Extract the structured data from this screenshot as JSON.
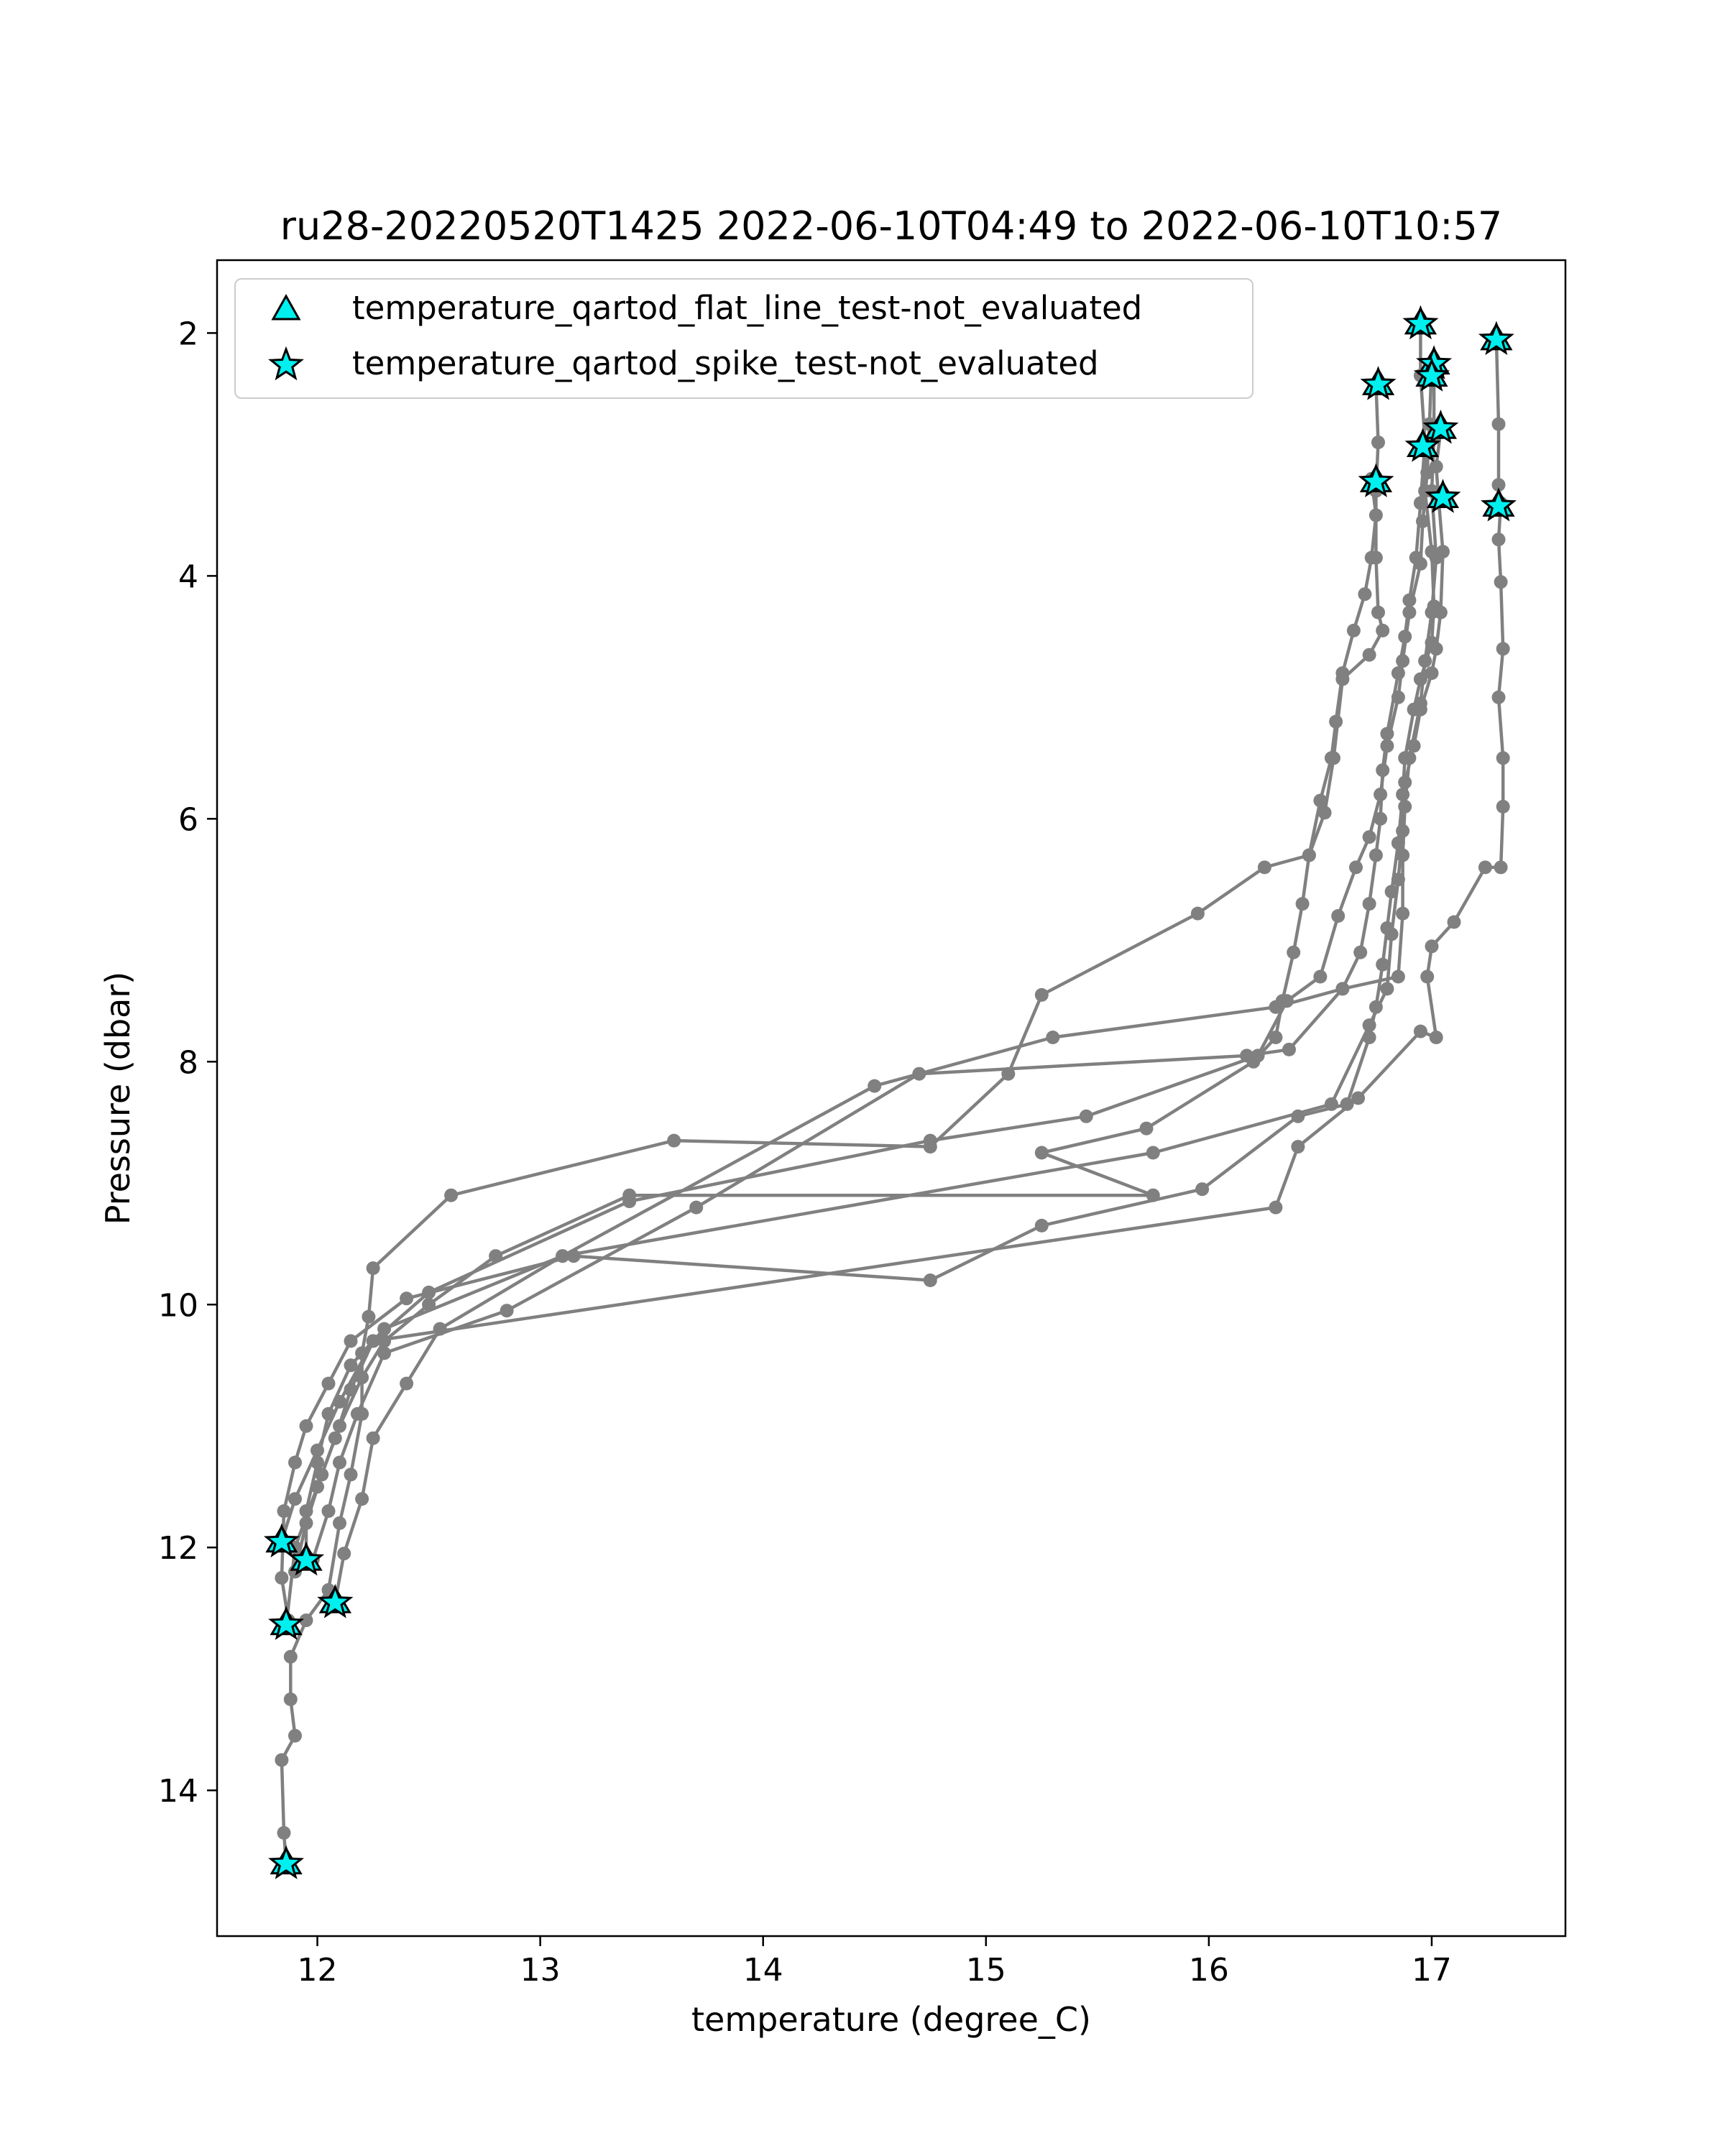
{
  "chart_data": {
    "type": "scatter",
    "title": "ru28-20220520T1425 2022-06-10T04:49 to 2022-06-10T10:57",
    "xlabel": "temperature (degree_C)",
    "ylabel": "Pressure (dbar)",
    "xlim": [
      11.55,
      17.6
    ],
    "ylim": [
      15.2,
      1.4
    ],
    "y_inverted": true,
    "xticks": [
      12,
      13,
      14,
      15,
      16,
      17
    ],
    "yticks": [
      2,
      4,
      6,
      8,
      10,
      12,
      14
    ],
    "grid": false,
    "line_color": "#808080",
    "marker_color": "#00f0f0",
    "legend_position": "upper left",
    "legend": [
      {
        "label": "temperature_qartod_flat_line_test-not_evaluated",
        "marker": "triangle"
      },
      {
        "label": "temperature_qartod_spike_test-not_evaluated",
        "marker": "star"
      }
    ],
    "profiles": [
      [
        [
          16.75,
          2.42
        ],
        [
          16.76,
          2.9
        ],
        [
          16.75,
          3.3
        ],
        [
          16.75,
          3.85
        ],
        [
          16.76,
          4.3
        ],
        [
          16.78,
          4.45
        ],
        [
          16.72,
          4.65
        ],
        [
          16.6,
          4.85
        ],
        [
          16.56,
          5.5
        ],
        [
          16.52,
          5.95
        ],
        [
          16.45,
          6.3
        ],
        [
          16.25,
          6.4
        ],
        [
          15.95,
          6.78
        ],
        [
          15.25,
          7.45
        ],
        [
          15.1,
          8.1
        ],
        [
          14.75,
          8.7
        ],
        [
          13.6,
          8.65
        ],
        [
          12.6,
          9.1
        ],
        [
          12.25,
          9.7
        ],
        [
          12.23,
          10.1
        ],
        [
          12.2,
          10.4
        ],
        [
          12.2,
          10.9
        ],
        [
          12.15,
          11.4
        ],
        [
          12.1,
          11.8
        ],
        [
          12.05,
          12.35
        ],
        [
          11.95,
          12.6
        ],
        [
          11.88,
          12.9
        ],
        [
          11.88,
          13.25
        ],
        [
          11.9,
          13.55
        ],
        [
          11.84,
          13.75
        ],
        [
          11.85,
          14.35
        ],
        [
          11.86,
          14.6
        ]
      ],
      [
        [
          16.95,
          1.92
        ],
        [
          16.95,
          2.35
        ],
        [
          16.97,
          2.9
        ],
        [
          16.95,
          3.4
        ],
        [
          16.93,
          3.85
        ],
        [
          16.9,
          4.2
        ],
        [
          16.88,
          4.5
        ],
        [
          16.85,
          4.8
        ],
        [
          16.8,
          5.3
        ],
        [
          16.78,
          5.6
        ],
        [
          16.77,
          6.0
        ],
        [
          16.75,
          6.3
        ],
        [
          16.72,
          6.7
        ],
        [
          16.68,
          7.1
        ],
        [
          16.6,
          7.4
        ],
        [
          16.3,
          7.55
        ],
        [
          15.3,
          7.8
        ],
        [
          14.5,
          8.2
        ],
        [
          13.1,
          9.6
        ],
        [
          12.3,
          10.2
        ],
        [
          12.15,
          10.5
        ],
        [
          12.05,
          10.9
        ],
        [
          12.0,
          11.3
        ],
        [
          11.95,
          11.7
        ],
        [
          11.95,
          12.1
        ]
      ],
      [
        [
          17.0,
          2.25
        ],
        [
          16.99,
          2.75
        ],
        [
          16.98,
          3.15
        ],
        [
          16.96,
          3.55
        ],
        [
          16.95,
          3.9
        ],
        [
          16.9,
          4.3
        ],
        [
          16.87,
          4.7
        ],
        [
          16.85,
          5.0
        ],
        [
          16.8,
          5.4
        ],
        [
          16.77,
          5.8
        ],
        [
          16.72,
          6.15
        ],
        [
          16.66,
          6.4
        ],
        [
          16.58,
          6.8
        ],
        [
          16.5,
          7.3
        ],
        [
          16.35,
          7.5
        ],
        [
          16.22,
          7.95
        ],
        [
          15.45,
          8.45
        ],
        [
          14.75,
          8.65
        ],
        [
          13.4,
          9.15
        ],
        [
          12.5,
          9.9
        ],
        [
          12.25,
          10.3
        ],
        [
          12.1,
          10.8
        ],
        [
          12.0,
          11.2
        ],
        [
          11.9,
          11.6
        ],
        [
          11.84,
          11.95
        ]
      ],
      [
        [
          17.01,
          2.35
        ],
        [
          17.01,
          2.85
        ],
        [
          17.0,
          3.3
        ],
        [
          17.02,
          3.85
        ],
        [
          17.0,
          4.3
        ],
        [
          16.97,
          4.7
        ],
        [
          16.95,
          5.05
        ],
        [
          16.9,
          5.5
        ],
        [
          16.88,
          5.9
        ],
        [
          16.87,
          6.3
        ],
        [
          16.87,
          6.78
        ],
        [
          16.85,
          7.3
        ],
        [
          16.6,
          7.4
        ],
        [
          16.36,
          7.9
        ],
        [
          16.17,
          7.95
        ],
        [
          14.7,
          8.1
        ],
        [
          13.7,
          9.2
        ],
        [
          12.85,
          10.05
        ],
        [
          12.3,
          10.4
        ],
        [
          12.18,
          10.9
        ],
        [
          12.1,
          11.3
        ],
        [
          12.05,
          11.7
        ],
        [
          11.98,
          12.1
        ]
      ],
      [
        [
          17.04,
          2.8
        ],
        [
          17.02,
          3.1
        ],
        [
          17.03,
          3.35
        ],
        [
          17.05,
          3.8
        ],
        [
          17.04,
          4.3
        ],
        [
          17.02,
          4.6
        ],
        [
          17.0,
          4.8
        ],
        [
          16.95,
          5.1
        ],
        [
          16.92,
          5.4
        ],
        [
          16.88,
          5.7
        ],
        [
          16.87,
          6.1
        ],
        [
          16.85,
          6.5
        ],
        [
          16.82,
          6.95
        ],
        [
          16.8,
          7.4
        ],
        [
          16.72,
          7.7
        ],
        [
          16.55,
          8.35
        ],
        [
          15.75,
          8.75
        ],
        [
          13.1,
          9.6
        ],
        [
          12.55,
          10.2
        ],
        [
          12.4,
          10.65
        ],
        [
          12.25,
          11.1
        ],
        [
          12.2,
          11.6
        ],
        [
          12.12,
          12.05
        ],
        [
          12.08,
          12.45
        ]
      ],
      [
        [
          17.29,
          2.05
        ],
        [
          17.3,
          2.75
        ],
        [
          17.3,
          3.25
        ],
        [
          17.31,
          3.4
        ],
        [
          17.3,
          3.7
        ],
        [
          17.31,
          4.05
        ],
        [
          17.32,
          4.6
        ],
        [
          17.3,
          5.0
        ],
        [
          17.32,
          5.5
        ],
        [
          17.32,
          5.9
        ],
        [
          17.31,
          6.4
        ],
        [
          17.24,
          6.4
        ],
        [
          17.1,
          6.85
        ],
        [
          17.0,
          7.05
        ],
        [
          16.98,
          7.3
        ],
        [
          17.02,
          7.8
        ],
        [
          16.95,
          7.75
        ],
        [
          16.67,
          8.3
        ],
        [
          16.4,
          8.7
        ],
        [
          16.3,
          9.2
        ],
        [
          12.25,
          10.3
        ],
        [
          12.15,
          10.7
        ],
        [
          12.08,
          11.1
        ],
        [
          12.0,
          11.5
        ],
        [
          11.9,
          12.0
        ],
        [
          11.86,
          12.65
        ]
      ],
      [
        [
          16.97,
          2.95
        ],
        [
          16.97,
          3.3
        ],
        [
          17.0,
          3.8
        ],
        [
          17.01,
          4.25
        ],
        [
          17.0,
          4.55
        ],
        [
          16.95,
          4.85
        ],
        [
          16.92,
          5.1
        ],
        [
          16.88,
          5.5
        ],
        [
          16.87,
          5.8
        ],
        [
          16.85,
          6.2
        ],
        [
          16.82,
          6.6
        ],
        [
          16.8,
          6.9
        ],
        [
          16.78,
          7.2
        ],
        [
          16.75,
          7.55
        ],
        [
          16.72,
          7.8
        ],
        [
          16.62,
          8.35
        ],
        [
          16.4,
          8.45
        ],
        [
          15.97,
          9.05
        ],
        [
          15.25,
          9.35
        ],
        [
          14.75,
          9.8
        ],
        [
          13.15,
          9.6
        ],
        [
          12.4,
          9.95
        ],
        [
          12.15,
          10.3
        ],
        [
          12.05,
          10.65
        ],
        [
          11.95,
          11.0
        ],
        [
          11.9,
          11.3
        ],
        [
          11.85,
          11.7
        ],
        [
          11.84,
          12.25
        ],
        [
          11.87,
          12.6
        ]
      ],
      [
        [
          16.73,
          3.2
        ],
        [
          16.75,
          3.5
        ],
        [
          16.73,
          3.85
        ],
        [
          16.7,
          4.15
        ],
        [
          16.65,
          4.45
        ],
        [
          16.6,
          4.8
        ],
        [
          16.57,
          5.2
        ],
        [
          16.55,
          5.5
        ],
        [
          16.5,
          5.85
        ],
        [
          16.45,
          6.3
        ],
        [
          16.42,
          6.7
        ],
        [
          16.38,
          7.1
        ],
        [
          16.33,
          7.5
        ],
        [
          16.3,
          7.8
        ],
        [
          16.2,
          8.0
        ],
        [
          15.72,
          8.55
        ],
        [
          15.25,
          8.75
        ],
        [
          15.75,
          9.1
        ],
        [
          13.4,
          9.1
        ],
        [
          12.8,
          9.6
        ],
        [
          12.5,
          10.0
        ],
        [
          12.3,
          10.3
        ],
        [
          12.2,
          10.6
        ],
        [
          12.1,
          11.0
        ],
        [
          12.02,
          11.4
        ],
        [
          11.95,
          11.8
        ],
        [
          11.9,
          12.2
        ]
      ]
    ],
    "flagged_points": [
      [
        16.95,
        1.92
      ],
      [
        17.29,
        2.05
      ],
      [
        17.01,
        2.25
      ],
      [
        17.0,
        2.35
      ],
      [
        16.76,
        2.42
      ],
      [
        17.04,
        2.78
      ],
      [
        16.96,
        2.93
      ],
      [
        16.75,
        3.22
      ],
      [
        17.05,
        3.35
      ],
      [
        17.3,
        3.42
      ],
      [
        11.84,
        11.95
      ],
      [
        11.95,
        12.1
      ],
      [
        12.08,
        12.45
      ],
      [
        11.86,
        12.63
      ],
      [
        11.86,
        14.6
      ]
    ]
  }
}
